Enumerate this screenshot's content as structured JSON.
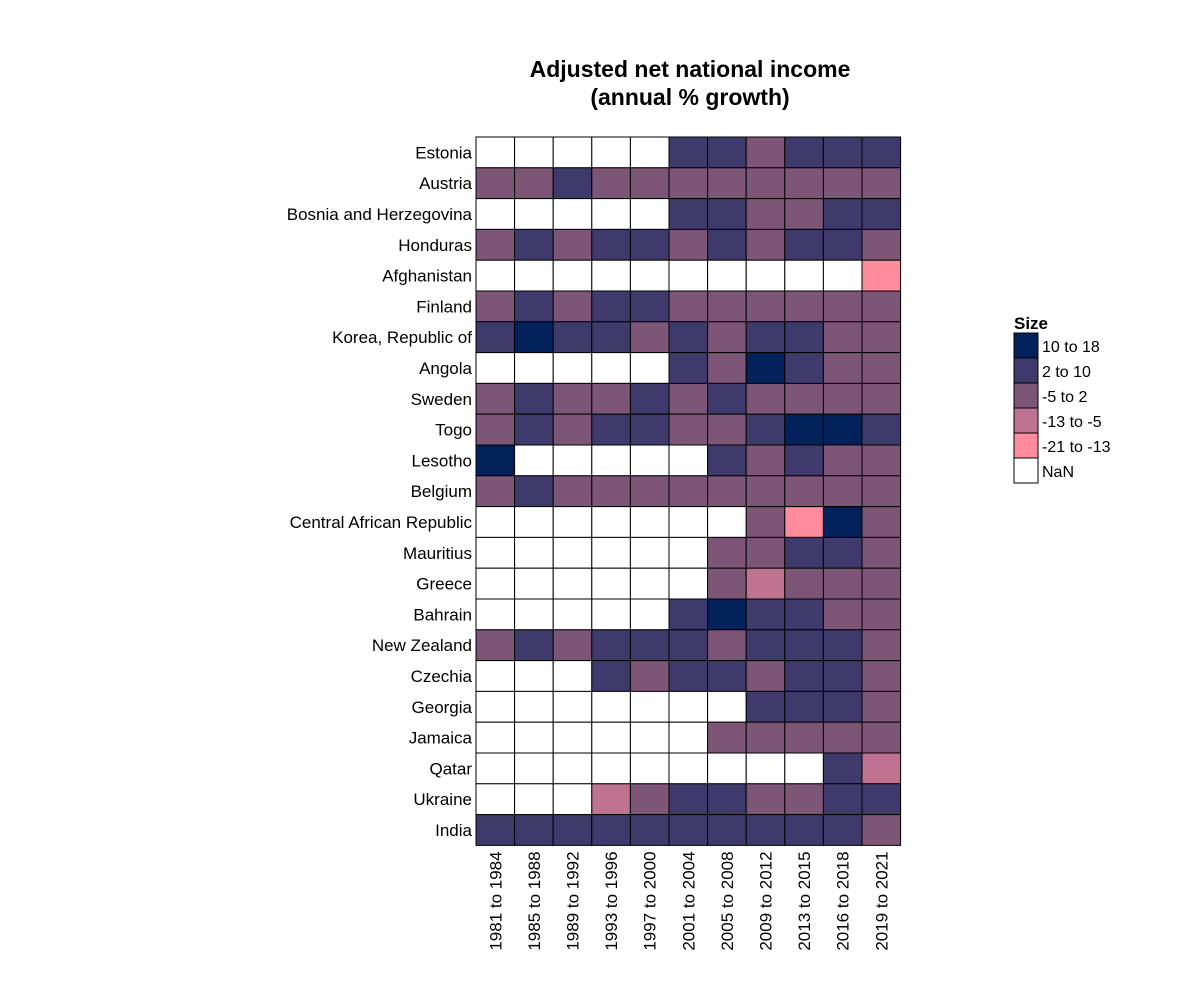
{
  "chart_data": {
    "type": "heatmap",
    "title_lines": [
      "Adjusted net national income",
      "(annual % growth)"
    ],
    "xlabel": "",
    "ylabel": "",
    "categories": [
      "1981 to 1984",
      "1985 to 1988",
      "1989 to 1992",
      "1993 to 1996",
      "1997 to 2000",
      "2001 to 2004",
      "2005 to 2008",
      "2009 to 2012",
      "2013 to 2015",
      "2016 to 2018",
      "2019 to 2021"
    ],
    "rows": [
      "Estonia",
      "Austria",
      "Bosnia and Herzegovina",
      "Honduras",
      "Afghanistan",
      "Finland",
      "Korea, Republic of",
      "Angola",
      "Sweden",
      "Togo",
      "Lesotho",
      "Belgium",
      "Central African Republic",
      "Mauritius",
      "Greece",
      "Bahrain",
      "New Zealand",
      "Czechia",
      "Georgia",
      "Jamaica",
      "Qatar",
      "Ukraine",
      "India"
    ],
    "legend": {
      "title": "Size",
      "position": "right",
      "items": [
        {
          "label": "10  to  18",
          "color": "#03215b"
        },
        {
          "label": "2  to  10",
          "color": "#3f3a6c"
        },
        {
          "label": "-5  to  2",
          "color": "#7d5577"
        },
        {
          "label": "-13  to  -5",
          "color": "#c07390"
        },
        {
          "label": "-21  to  -13",
          "color": "#ff8c9c"
        },
        {
          "label": "NaN",
          "color": "#ffffff"
        }
      ]
    },
    "cell_bins": [
      [
        "NaN",
        "NaN",
        "NaN",
        "NaN",
        "NaN",
        "2  to  10",
        "2  to  10",
        "-5  to  2",
        "2  to  10",
        "2  to  10",
        "2  to  10"
      ],
      [
        "-5  to  2",
        "-5  to  2",
        "2  to  10",
        "-5  to  2",
        "-5  to  2",
        "-5  to  2",
        "-5  to  2",
        "-5  to  2",
        "-5  to  2",
        "-5  to  2",
        "-5  to  2"
      ],
      [
        "NaN",
        "NaN",
        "NaN",
        "NaN",
        "NaN",
        "2  to  10",
        "2  to  10",
        "-5  to  2",
        "-5  to  2",
        "2  to  10",
        "2  to  10"
      ],
      [
        "-5  to  2",
        "2  to  10",
        "-5  to  2",
        "2  to  10",
        "2  to  10",
        "-5  to  2",
        "2  to  10",
        "-5  to  2",
        "2  to  10",
        "2  to  10",
        "-5  to  2"
      ],
      [
        "NaN",
        "NaN",
        "NaN",
        "NaN",
        "NaN",
        "NaN",
        "NaN",
        "NaN",
        "NaN",
        "NaN",
        "-21  to  -13"
      ],
      [
        "-5  to  2",
        "2  to  10",
        "-5  to  2",
        "2  to  10",
        "2  to  10",
        "-5  to  2",
        "-5  to  2",
        "-5  to  2",
        "-5  to  2",
        "-5  to  2",
        "-5  to  2"
      ],
      [
        "2  to  10",
        "10  to  18",
        "2  to  10",
        "2  to  10",
        "-5  to  2",
        "2  to  10",
        "-5  to  2",
        "2  to  10",
        "2  to  10",
        "-5  to  2",
        "-5  to  2"
      ],
      [
        "NaN",
        "NaN",
        "NaN",
        "NaN",
        "NaN",
        "2  to  10",
        "-5  to  2",
        "10  to  18",
        "2  to  10",
        "-5  to  2",
        "-5  to  2"
      ],
      [
        "-5  to  2",
        "2  to  10",
        "-5  to  2",
        "-5  to  2",
        "2  to  10",
        "-5  to  2",
        "2  to  10",
        "-5  to  2",
        "-5  to  2",
        "-5  to  2",
        "-5  to  2"
      ],
      [
        "-5  to  2",
        "2  to  10",
        "-5  to  2",
        "2  to  10",
        "2  to  10",
        "-5  to  2",
        "-5  to  2",
        "2  to  10",
        "10  to  18",
        "10  to  18",
        "2  to  10"
      ],
      [
        "10  to  18",
        "NaN",
        "NaN",
        "NaN",
        "NaN",
        "NaN",
        "2  to  10",
        "-5  to  2",
        "2  to  10",
        "-5  to  2",
        "-5  to  2"
      ],
      [
        "-5  to  2",
        "2  to  10",
        "-5  to  2",
        "-5  to  2",
        "-5  to  2",
        "-5  to  2",
        "-5  to  2",
        "-5  to  2",
        "-5  to  2",
        "-5  to  2",
        "-5  to  2"
      ],
      [
        "NaN",
        "NaN",
        "NaN",
        "NaN",
        "NaN",
        "NaN",
        "NaN",
        "-5  to  2",
        "-21  to  -13",
        "10  to  18",
        "-5  to  2"
      ],
      [
        "NaN",
        "NaN",
        "NaN",
        "NaN",
        "NaN",
        "NaN",
        "-5  to  2",
        "-5  to  2",
        "2  to  10",
        "2  to  10",
        "-5  to  2"
      ],
      [
        "NaN",
        "NaN",
        "NaN",
        "NaN",
        "NaN",
        "NaN",
        "-5  to  2",
        "-13  to  -5",
        "-5  to  2",
        "-5  to  2",
        "-5  to  2"
      ],
      [
        "NaN",
        "NaN",
        "NaN",
        "NaN",
        "NaN",
        "2  to  10",
        "10  to  18",
        "2  to  10",
        "2  to  10",
        "-5  to  2",
        "-5  to  2"
      ],
      [
        "-5  to  2",
        "2  to  10",
        "-5  to  2",
        "2  to  10",
        "2  to  10",
        "2  to  10",
        "-5  to  2",
        "2  to  10",
        "2  to  10",
        "2  to  10",
        "-5  to  2"
      ],
      [
        "NaN",
        "NaN",
        "NaN",
        "2  to  10",
        "-5  to  2",
        "2  to  10",
        "2  to  10",
        "-5  to  2",
        "2  to  10",
        "2  to  10",
        "-5  to  2"
      ],
      [
        "NaN",
        "NaN",
        "NaN",
        "NaN",
        "NaN",
        "NaN",
        "NaN",
        "2  to  10",
        "2  to  10",
        "2  to  10",
        "-5  to  2"
      ],
      [
        "NaN",
        "NaN",
        "NaN",
        "NaN",
        "NaN",
        "NaN",
        "-5  to  2",
        "-5  to  2",
        "-5  to  2",
        "-5  to  2",
        "-5  to  2"
      ],
      [
        "NaN",
        "NaN",
        "NaN",
        "NaN",
        "NaN",
        "NaN",
        "NaN",
        "NaN",
        "NaN",
        "2  to  10",
        "-13  to  -5"
      ],
      [
        "NaN",
        "NaN",
        "NaN",
        "-13  to  -5",
        "-5  to  2",
        "2  to  10",
        "2  to  10",
        "-5  to  2",
        "-5  to  2",
        "2  to  10",
        "2  to  10"
      ],
      [
        "2  to  10",
        "2  to  10",
        "2  to  10",
        "2  to  10",
        "2  to  10",
        "2  to  10",
        "2  to  10",
        "2  to  10",
        "2  to  10",
        "2  to  10",
        "-5  to  2"
      ]
    ]
  }
}
